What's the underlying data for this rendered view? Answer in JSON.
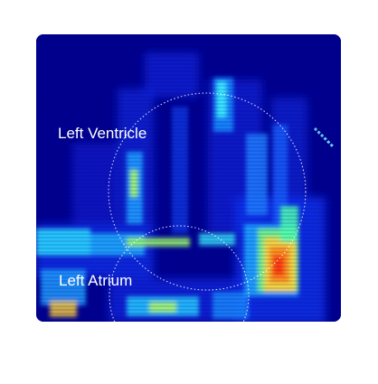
{
  "image": {
    "labels": {
      "left_ventricle": "Left Ventricle",
      "left_atrium": "Left Atrium"
    },
    "colors": {
      "background": "#00008f",
      "outline": "#ffffff"
    }
  }
}
